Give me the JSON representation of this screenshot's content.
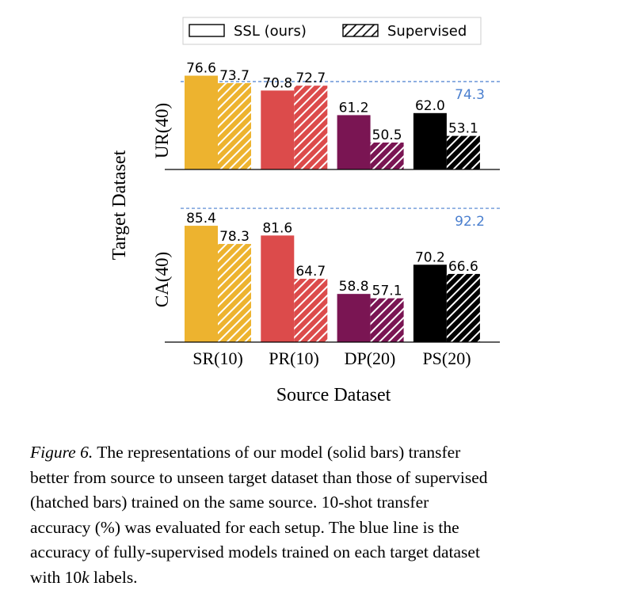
{
  "chart_data": {
    "type": "bar",
    "legend": {
      "position": "top-center",
      "entries": [
        {
          "label": "SSL (ours)",
          "style": "solid"
        },
        {
          "label": "Supervised",
          "style": "hatched"
        }
      ]
    },
    "ylabel": "Target Dataset",
    "xlabel": "Source Dataset",
    "categories": [
      "SR(10)",
      "PR(10)",
      "DP(20)",
      "PS(20)"
    ],
    "bar_colors": [
      "#EDB32F",
      "#DC4B4B",
      "#7A1553",
      "#000000"
    ],
    "reference_line_color": "#4A7FCF",
    "ylim": [
      40,
      95
    ],
    "panels": [
      {
        "row_label": "UR(40)",
        "ssl": [
          "76.6",
          "70.8",
          "61.2",
          "62.0"
        ],
        "supervised": [
          "73.7",
          "72.7",
          "50.5",
          "53.1"
        ],
        "reference": "74.3"
      },
      {
        "row_label": "CA(40)",
        "ssl": [
          "85.4",
          "81.6",
          "58.8",
          "70.2"
        ],
        "supervised": [
          "78.3",
          "64.7",
          "57.1",
          "66.6"
        ],
        "reference": "92.2"
      }
    ]
  },
  "caption": {
    "label": "Figure 6.",
    "line1": " The representations of our model (solid bars) transfer",
    "line2": "better from source to unseen target dataset than those of supervised",
    "line3": "(hatched bars) trained on the same source.  10-shot transfer",
    "line4": "accuracy (%) was evaluated for each setup. The blue line is the",
    "line5": "accuracy of fully-supervised models trained on each target dataset",
    "line6_pre": "with 10",
    "line6_k": "k",
    "line6_post": " labels."
  }
}
